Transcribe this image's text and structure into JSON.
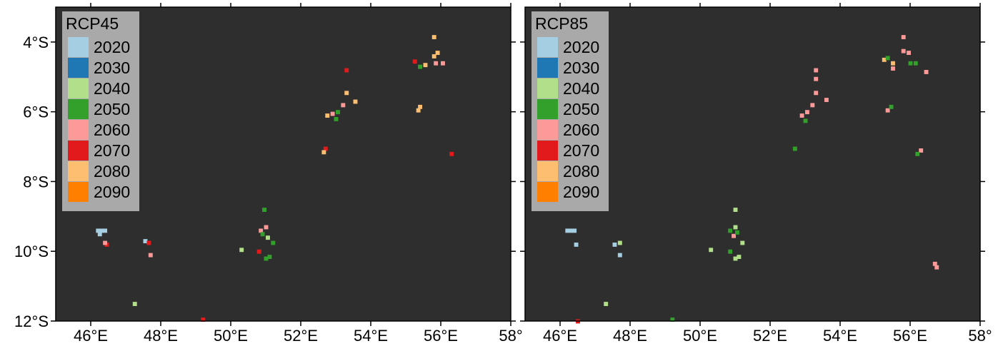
{
  "map": {
    "x_ticks": [
      "46°E",
      "48°E",
      "50°E",
      "52°E",
      "54°E",
      "56°E",
      "58°"
    ],
    "y_ticks": [
      "4°S",
      "6°S",
      "8°S",
      "10°S",
      "12°S"
    ],
    "x_tick_values": [
      46,
      48,
      50,
      52,
      54,
      56,
      58
    ],
    "y_tick_values": [
      4,
      6,
      8,
      10,
      12
    ],
    "lon_range": [
      45,
      58
    ],
    "lat_range": [
      3,
      12
    ],
    "background_color": "#2e2e2e",
    "legend_colors": {
      "2020": "#a6cee3",
      "2030": "#1f78b4",
      "2040": "#b2df8a",
      "2050": "#33a02c",
      "2060": "#fb9a99",
      "2070": "#e31a1c",
      "2080": "#fdbf6f",
      "2090": "#ff7f00"
    }
  },
  "panels": [
    {
      "legend_title": "RCP45",
      "legend_items": [
        "2020",
        "2030",
        "2040",
        "2050",
        "2060",
        "2070",
        "2080",
        "2090"
      ],
      "cells": [
        {
          "lon": 46.2,
          "lat": 9.4,
          "year": "2020"
        },
        {
          "lon": 46.3,
          "lat": 9.4,
          "year": "2020"
        },
        {
          "lon": 46.4,
          "lat": 9.4,
          "year": "2020"
        },
        {
          "lon": 46.25,
          "lat": 9.5,
          "year": "2020"
        },
        {
          "lon": 46.45,
          "lat": 9.8,
          "year": "2070"
        },
        {
          "lon": 46.4,
          "lat": 9.75,
          "year": "2060"
        },
        {
          "lon": 47.55,
          "lat": 9.7,
          "year": "2020"
        },
        {
          "lon": 47.65,
          "lat": 9.75,
          "year": "2070"
        },
        {
          "lon": 47.7,
          "lat": 10.1,
          "year": "2060"
        },
        {
          "lon": 47.25,
          "lat": 11.5,
          "year": "2040"
        },
        {
          "lon": 49.2,
          "lat": 11.95,
          "year": "2070"
        },
        {
          "lon": 50.3,
          "lat": 9.95,
          "year": "2040"
        },
        {
          "lon": 50.95,
          "lat": 8.8,
          "year": "2050"
        },
        {
          "lon": 50.85,
          "lat": 9.4,
          "year": "2060"
        },
        {
          "lon": 51.0,
          "lat": 9.3,
          "year": "2060"
        },
        {
          "lon": 50.9,
          "lat": 9.5,
          "year": "2050"
        },
        {
          "lon": 51.05,
          "lat": 9.6,
          "year": "2040"
        },
        {
          "lon": 51.2,
          "lat": 9.75,
          "year": "2050"
        },
        {
          "lon": 50.8,
          "lat": 10.0,
          "year": "2070"
        },
        {
          "lon": 51.0,
          "lat": 10.2,
          "year": "2050"
        },
        {
          "lon": 51.1,
          "lat": 10.15,
          "year": "2050"
        },
        {
          "lon": 52.7,
          "lat": 7.05,
          "year": "2070"
        },
        {
          "lon": 52.65,
          "lat": 7.15,
          "year": "2080"
        },
        {
          "lon": 52.75,
          "lat": 6.1,
          "year": "2080"
        },
        {
          "lon": 52.9,
          "lat": 6.05,
          "year": "2060"
        },
        {
          "lon": 53.0,
          "lat": 6.2,
          "year": "2050"
        },
        {
          "lon": 53.05,
          "lat": 6.0,
          "year": "2050"
        },
        {
          "lon": 53.2,
          "lat": 5.8,
          "year": "2060"
        },
        {
          "lon": 53.3,
          "lat": 5.45,
          "year": "2080"
        },
        {
          "lon": 53.55,
          "lat": 5.7,
          "year": "2080"
        },
        {
          "lon": 53.3,
          "lat": 4.8,
          "year": "2070"
        },
        {
          "lon": 55.35,
          "lat": 5.95,
          "year": "2080"
        },
        {
          "lon": 55.4,
          "lat": 5.85,
          "year": "2080"
        },
        {
          "lon": 55.25,
          "lat": 4.55,
          "year": "2070"
        },
        {
          "lon": 55.4,
          "lat": 4.7,
          "year": "2050"
        },
        {
          "lon": 55.55,
          "lat": 4.65,
          "year": "2080"
        },
        {
          "lon": 55.8,
          "lat": 4.4,
          "year": "2080"
        },
        {
          "lon": 55.9,
          "lat": 4.3,
          "year": "2080"
        },
        {
          "lon": 55.8,
          "lat": 3.85,
          "year": "2080"
        },
        {
          "lon": 55.85,
          "lat": 4.6,
          "year": "2060"
        },
        {
          "lon": 56.05,
          "lat": 4.6,
          "year": "2060"
        },
        {
          "lon": 56.3,
          "lat": 7.2,
          "year": "2070"
        }
      ]
    },
    {
      "legend_title": "RCP85",
      "legend_items": [
        "2020",
        "2030",
        "2040",
        "2050",
        "2060",
        "2070",
        "2080",
        "2090"
      ],
      "cells": [
        {
          "lon": 46.2,
          "lat": 9.4,
          "year": "2020"
        },
        {
          "lon": 46.3,
          "lat": 9.4,
          "year": "2020"
        },
        {
          "lon": 46.4,
          "lat": 9.4,
          "year": "2020"
        },
        {
          "lon": 46.45,
          "lat": 9.8,
          "year": "2020"
        },
        {
          "lon": 47.55,
          "lat": 9.8,
          "year": "2020"
        },
        {
          "lon": 47.7,
          "lat": 9.75,
          "year": "2040"
        },
        {
          "lon": 47.7,
          "lat": 10.1,
          "year": "2020"
        },
        {
          "lon": 47.3,
          "lat": 11.5,
          "year": "2040"
        },
        {
          "lon": 46.5,
          "lat": 12.0,
          "year": "2070"
        },
        {
          "lon": 49.2,
          "lat": 11.95,
          "year": "2050"
        },
        {
          "lon": 50.3,
          "lat": 9.95,
          "year": "2040"
        },
        {
          "lon": 51.0,
          "lat": 8.8,
          "year": "2040"
        },
        {
          "lon": 50.85,
          "lat": 9.4,
          "year": "2050"
        },
        {
          "lon": 51.0,
          "lat": 9.3,
          "year": "2040"
        },
        {
          "lon": 50.95,
          "lat": 9.55,
          "year": "2060"
        },
        {
          "lon": 51.05,
          "lat": 9.45,
          "year": "2050"
        },
        {
          "lon": 51.2,
          "lat": 9.75,
          "year": "2040"
        },
        {
          "lon": 50.85,
          "lat": 10.0,
          "year": "2050"
        },
        {
          "lon": 51.0,
          "lat": 10.2,
          "year": "2040"
        },
        {
          "lon": 51.1,
          "lat": 10.15,
          "year": "2040"
        },
        {
          "lon": 52.7,
          "lat": 7.05,
          "year": "2050"
        },
        {
          "lon": 52.9,
          "lat": 6.1,
          "year": "2060"
        },
        {
          "lon": 53.0,
          "lat": 6.25,
          "year": "2050"
        },
        {
          "lon": 53.05,
          "lat": 6.0,
          "year": "2060"
        },
        {
          "lon": 53.2,
          "lat": 5.8,
          "year": "2060"
        },
        {
          "lon": 53.3,
          "lat": 5.45,
          "year": "2060"
        },
        {
          "lon": 53.3,
          "lat": 5.05,
          "year": "2060"
        },
        {
          "lon": 53.3,
          "lat": 4.8,
          "year": "2060"
        },
        {
          "lon": 53.6,
          "lat": 5.65,
          "year": "2060"
        },
        {
          "lon": 55.35,
          "lat": 5.95,
          "year": "2060"
        },
        {
          "lon": 55.45,
          "lat": 5.85,
          "year": "2050"
        },
        {
          "lon": 55.25,
          "lat": 4.5,
          "year": "2080"
        },
        {
          "lon": 55.35,
          "lat": 4.45,
          "year": "2050"
        },
        {
          "lon": 55.5,
          "lat": 4.6,
          "year": "2080"
        },
        {
          "lon": 55.5,
          "lat": 4.75,
          "year": "2060"
        },
        {
          "lon": 55.8,
          "lat": 4.25,
          "year": "2060"
        },
        {
          "lon": 55.95,
          "lat": 4.3,
          "year": "2060"
        },
        {
          "lon": 55.8,
          "lat": 3.85,
          "year": "2060"
        },
        {
          "lon": 56.0,
          "lat": 4.6,
          "year": "2050"
        },
        {
          "lon": 56.15,
          "lat": 4.6,
          "year": "2050"
        },
        {
          "lon": 56.45,
          "lat": 4.85,
          "year": "2060"
        },
        {
          "lon": 56.3,
          "lat": 7.1,
          "year": "2060"
        },
        {
          "lon": 56.2,
          "lat": 7.2,
          "year": "2050"
        },
        {
          "lon": 56.7,
          "lat": 10.35,
          "year": "2060"
        },
        {
          "lon": 56.75,
          "lat": 10.45,
          "year": "2060"
        }
      ]
    }
  ]
}
